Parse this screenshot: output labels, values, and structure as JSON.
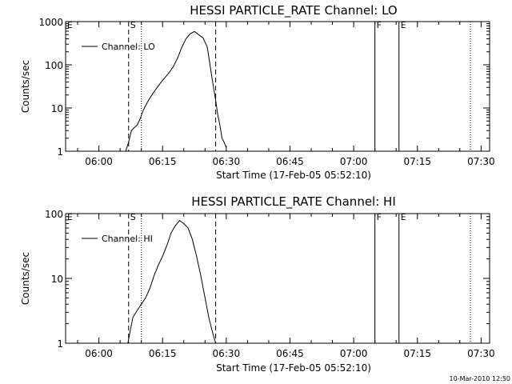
{
  "chart_data": [
    {
      "type": "line",
      "title": "HESSI PARTICLE_RATE Channel: LO",
      "xlabel": "Start Time (17-Feb-05 05:52:10)",
      "ylabel": "Counts/sec",
      "y_scale": "log",
      "ylim": [
        1,
        1000
      ],
      "xlim": [
        "05:52:10",
        "07:32:00"
      ],
      "x_ticks": [
        "06:00",
        "06:15",
        "06:30",
        "06:45",
        "07:00",
        "07:15",
        "07:30"
      ],
      "y_ticks": [
        "1",
        "10",
        "100",
        "1000"
      ],
      "legend": {
        "placement": "top-left",
        "entries": [
          "Channel: LO"
        ]
      },
      "markers": [
        {
          "label": "E",
          "time": "05:52:10",
          "style": "none"
        },
        {
          "label": "S",
          "time": "06:07:00",
          "style": "dashed"
        },
        {
          "label": "",
          "time": "06:10:00",
          "style": "dotted"
        },
        {
          "label": "",
          "time": "06:27:30",
          "style": "dashed"
        },
        {
          "label": "F",
          "time": "07:05:00",
          "style": "solid"
        },
        {
          "label": "E",
          "time": "07:10:40",
          "style": "solid"
        },
        {
          "label": "",
          "time": "07:27:30",
          "style": "dotted"
        }
      ],
      "series": [
        {
          "name": "Channel: LO",
          "points": [
            [
              "06:06:20",
              1
            ],
            [
              "06:07:00",
              1.6
            ],
            [
              "06:07:40",
              3
            ],
            [
              "06:08:20",
              3.5
            ],
            [
              "06:09:00",
              4
            ],
            [
              "06:09:40",
              5.5
            ],
            [
              "06:10:30",
              9
            ],
            [
              "06:11:30",
              14
            ],
            [
              "06:12:30",
              20
            ],
            [
              "06:13:30",
              28
            ],
            [
              "06:14:30",
              38
            ],
            [
              "06:15:30",
              50
            ],
            [
              "06:16:30",
              65
            ],
            [
              "06:17:30",
              90
            ],
            [
              "06:18:30",
              140
            ],
            [
              "06:19:30",
              250
            ],
            [
              "06:20:30",
              400
            ],
            [
              "06:21:30",
              520
            ],
            [
              "06:22:30",
              590
            ],
            [
              "06:23:30",
              500
            ],
            [
              "06:24:30",
              420
            ],
            [
              "06:25:30",
              260
            ],
            [
              "06:26:00",
              130
            ],
            [
              "06:26:30",
              60
            ],
            [
              "06:27:00",
              30
            ],
            [
              "06:27:30",
              15
            ],
            [
              "06:28:00",
              7
            ],
            [
              "06:28:30",
              4
            ],
            [
              "06:29:00",
              2
            ],
            [
              "06:29:30",
              1.6
            ],
            [
              "06:30:00",
              1.2
            ]
          ]
        }
      ]
    },
    {
      "type": "line",
      "title": "HESSI PARTICLE_RATE Channel: HI",
      "xlabel": "Start Time (17-Feb-05 05:52:10)",
      "ylabel": "Counts/sec",
      "y_scale": "log",
      "ylim": [
        1,
        100
      ],
      "xlim": [
        "05:52:10",
        "07:32:00"
      ],
      "x_ticks": [
        "06:00",
        "06:15",
        "06:30",
        "06:45",
        "07:00",
        "07:15",
        "07:30"
      ],
      "y_ticks": [
        "1",
        "10",
        "100"
      ],
      "legend": {
        "placement": "top-left",
        "entries": [
          "Channel: HI"
        ]
      },
      "markers": [
        {
          "label": "E",
          "time": "05:52:10",
          "style": "none"
        },
        {
          "label": "S",
          "time": "06:07:00",
          "style": "dashed"
        },
        {
          "label": "",
          "time": "06:10:00",
          "style": "dotted"
        },
        {
          "label": "",
          "time": "06:27:30",
          "style": "dashed"
        },
        {
          "label": "F",
          "time": "07:05:00",
          "style": "solid"
        },
        {
          "label": "E",
          "time": "07:10:40",
          "style": "solid"
        },
        {
          "label": "",
          "time": "07:27:30",
          "style": "dotted"
        }
      ],
      "series": [
        {
          "name": "Channel: HI",
          "points": [
            [
              "06:06:50",
              1
            ],
            [
              "06:07:20",
              1.5
            ],
            [
              "06:08:00",
              2.5
            ],
            [
              "06:09:00",
              3.2
            ],
            [
              "06:10:00",
              4
            ],
            [
              "06:11:00",
              5
            ],
            [
              "06:12:00",
              7
            ],
            [
              "06:13:00",
              11
            ],
            [
              "06:14:00",
              16
            ],
            [
              "06:15:00",
              22
            ],
            [
              "06:16:00",
              32
            ],
            [
              "06:17:00",
              50
            ],
            [
              "06:18:00",
              65
            ],
            [
              "06:19:00",
              78
            ],
            [
              "06:20:00",
              70
            ],
            [
              "06:21:00",
              60
            ],
            [
              "06:22:00",
              40
            ],
            [
              "06:23:00",
              22
            ],
            [
              "06:24:00",
              11
            ],
            [
              "06:25:00",
              5
            ],
            [
              "06:26:00",
              2.3
            ],
            [
              "06:27:00",
              1.3
            ],
            [
              "06:27:30",
              1
            ]
          ]
        }
      ]
    }
  ],
  "footer": {
    "timestamp": "10-Mar-2010 12:50"
  }
}
